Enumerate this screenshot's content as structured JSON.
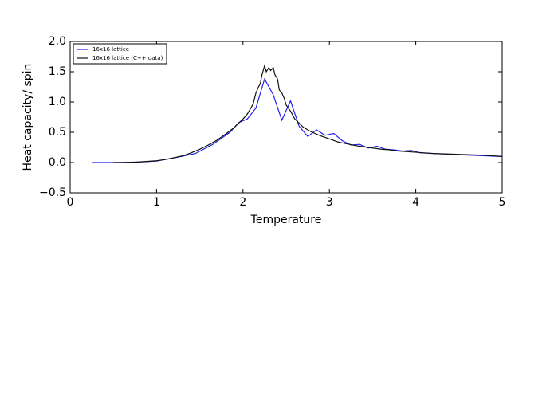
{
  "chart_data": {
    "type": "line",
    "xlabel": "Temperature",
    "ylabel": "Heat capacity/ spin",
    "xlim": [
      0,
      5
    ],
    "ylim": [
      -0.5,
      2.0
    ],
    "xticks": [
      0,
      1,
      2,
      3,
      4,
      5
    ],
    "yticks": [
      {
        "value": -0.5,
        "label": "−0.5"
      },
      {
        "value": 0,
        "label": "0.0"
      },
      {
        "value": 0.5,
        "label": "0.5"
      },
      {
        "value": 1,
        "label": "1.0"
      },
      {
        "value": 1.5,
        "label": "1.5"
      },
      {
        "value": 2,
        "label": "2.0"
      }
    ],
    "legend": "upper left",
    "series": [
      {
        "name": "16x16 lattice",
        "color": "#2222ee",
        "x": [
          0.25,
          0.5,
          0.75,
          1.0,
          1.25,
          1.45,
          1.65,
          1.85,
          1.95,
          2.05,
          2.15,
          2.25,
          2.35,
          2.45,
          2.55,
          2.65,
          2.75,
          2.85,
          2.95,
          3.05,
          3.15,
          3.25,
          3.35,
          3.45,
          3.55,
          3.65,
          3.75,
          3.85,
          3.95,
          4.05,
          4.5,
          5.0
        ],
        "values": [
          0,
          0,
          0.005,
          0.025,
          0.09,
          0.15,
          0.3,
          0.5,
          0.66,
          0.72,
          0.9,
          1.38,
          1.12,
          0.7,
          1.02,
          0.6,
          0.43,
          0.54,
          0.45,
          0.48,
          0.36,
          0.29,
          0.3,
          0.24,
          0.27,
          0.22,
          0.21,
          0.19,
          0.2,
          0.16,
          0.13,
          0.1
        ]
      },
      {
        "name": "16x16 lattice (C++ data)",
        "color": "#111111",
        "x": [
          0.5,
          0.6,
          0.7,
          0.8,
          0.9,
          1.0,
          1.1,
          1.2,
          1.3,
          1.4,
          1.5,
          1.6,
          1.7,
          1.8,
          1.9,
          1.95,
          2.0,
          2.05,
          2.1,
          2.12,
          2.15,
          2.18,
          2.2,
          2.22,
          2.25,
          2.27,
          2.3,
          2.32,
          2.35,
          2.37,
          2.4,
          2.42,
          2.45,
          2.48,
          2.5,
          2.55,
          2.6,
          2.65,
          2.7,
          2.8,
          2.9,
          3.0,
          3.1,
          3.2,
          3.3,
          3.4,
          3.5,
          3.6,
          3.7,
          3.8,
          3.9,
          4.0,
          4.2,
          4.4,
          4.6,
          4.8,
          5.0
        ],
        "values": [
          0,
          0,
          0.005,
          0.01,
          0.02,
          0.03,
          0.05,
          0.08,
          0.11,
          0.16,
          0.22,
          0.29,
          0.37,
          0.47,
          0.58,
          0.65,
          0.72,
          0.8,
          0.92,
          0.98,
          1.15,
          1.25,
          1.3,
          1.45,
          1.6,
          1.5,
          1.57,
          1.52,
          1.57,
          1.45,
          1.38,
          1.2,
          1.15,
          1.05,
          0.95,
          0.85,
          0.72,
          0.65,
          0.58,
          0.5,
          0.44,
          0.39,
          0.34,
          0.31,
          0.28,
          0.26,
          0.24,
          0.22,
          0.21,
          0.19,
          0.18,
          0.17,
          0.15,
          0.14,
          0.13,
          0.12,
          0.1
        ]
      }
    ]
  }
}
